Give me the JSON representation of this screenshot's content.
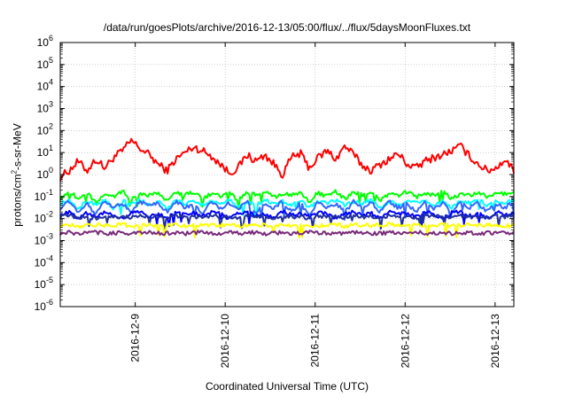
{
  "chart_data": {
    "type": "line",
    "title": "/data/run/goesPlots/archive/2016-12-13/05:00/flux/../flux/5daysMoonFluxes.txt",
    "xlabel": "Coordinated Universal Time (UTC)",
    "ylabel_prefix": "protons/cm",
    "ylabel_sup": "2",
    "ylabel_suffix": "-s-sr-MeV",
    "yscale": "log",
    "ylim": [
      1e-06,
      1000000.0
    ],
    "ytick_base": "10",
    "ytick_exponents": [
      "-6",
      "-5",
      "-4",
      "-3",
      "-2",
      "-1",
      "0",
      "1",
      "2",
      "3",
      "4",
      "5",
      "6"
    ],
    "xlim": [
      "2016-12-08T04:00",
      "2016-12-13T05:00"
    ],
    "xticks": [
      "2016-12-9",
      "2016-12-10",
      "2016-12-11",
      "2016-12-12",
      "2016-12-13"
    ],
    "grid": true,
    "series": [
      {
        "color": "#ff0000",
        "center": 4.0,
        "values": [
          0.8,
          1.5,
          4.0,
          1.5,
          5.0,
          2.0,
          6.0,
          12.0,
          35.0,
          15.0,
          8.0,
          3.0,
          1.5,
          5.0,
          10.0,
          18.0,
          12.0,
          7.0,
          3.0,
          1.2,
          2.0,
          8.0,
          4.0,
          8.0,
          3.0,
          1.0,
          6.0,
          9.0,
          2.0,
          6.0,
          12.0,
          5.0,
          20.0,
          8.0,
          2.5,
          1.5,
          3.0,
          5.0,
          9.0,
          3.0,
          2.0,
          4.0,
          6.0,
          8.0,
          12.0,
          20.0,
          7.0,
          3.0,
          1.5,
          2.0,
          5.0,
          1.5
        ]
      },
      {
        "color": "#00ff00",
        "center": 0.13,
        "values": [
          0.08,
          0.18,
          0.08,
          0.16,
          0.05,
          0.15,
          0.1,
          0.18,
          0.07,
          0.14,
          0.11,
          0.16,
          0.06,
          0.15,
          0.12,
          0.17,
          0.08,
          0.14,
          0.1,
          0.16,
          0.07,
          0.15,
          0.12,
          0.18,
          0.09,
          0.14,
          0.11,
          0.16,
          0.06,
          0.15,
          0.1,
          0.17,
          0.08,
          0.15,
          0.12,
          0.16,
          0.07,
          0.14,
          0.11,
          0.17,
          0.09,
          0.15,
          0.12,
          0.16,
          0.08,
          0.14,
          0.11,
          0.17,
          0.09,
          0.15,
          0.13,
          0.16
        ]
      },
      {
        "color": "#00ffff",
        "center": 0.05,
        "values": [
          0.05,
          0.07,
          0.03,
          0.06,
          0.04,
          0.07,
          0.03,
          0.06,
          0.05,
          0.07,
          0.04,
          0.06,
          0.03,
          0.06,
          0.05,
          0.07,
          0.04,
          0.06,
          0.05,
          0.07,
          0.03,
          0.06,
          0.04,
          0.07,
          0.05,
          0.06,
          0.04,
          0.07,
          0.03,
          0.06,
          0.05,
          0.07,
          0.04,
          0.06,
          0.05,
          0.07,
          0.03,
          0.06,
          0.04,
          0.07,
          0.05,
          0.06,
          0.04,
          0.07,
          0.03,
          0.06,
          0.05,
          0.07,
          0.04,
          0.06,
          0.05,
          0.07
        ]
      },
      {
        "color": "#3366ff",
        "center": 0.04,
        "values": [
          0.03,
          0.06,
          0.02,
          0.05,
          0.015,
          0.06,
          0.03,
          0.05,
          0.02,
          0.06,
          0.035,
          0.05,
          0.02,
          0.06,
          0.03,
          0.05,
          0.015,
          0.06,
          0.03,
          0.05,
          0.025,
          0.06,
          0.02,
          0.05,
          0.03,
          0.06,
          0.02,
          0.05,
          0.015,
          0.06,
          0.03,
          0.05,
          0.02,
          0.06,
          0.035,
          0.05,
          0.02,
          0.06,
          0.03,
          0.05,
          0.02,
          0.06,
          0.03,
          0.05,
          0.02,
          0.06,
          0.03,
          0.05,
          0.02,
          0.05,
          0.03,
          0.06
        ]
      },
      {
        "color": "#0000ff",
        "center": 0.015,
        "values": [
          0.015,
          0.02,
          0.01,
          0.018,
          0.012,
          0.02,
          0.015,
          0.01,
          0.018,
          0.02,
          0.012,
          0.017,
          0.01,
          0.02,
          0.015,
          0.018,
          0.012,
          0.02,
          0.016,
          0.01,
          0.018,
          0.02,
          0.013,
          0.017,
          0.01,
          0.02,
          0.015,
          0.018,
          0.012,
          0.02,
          0.016,
          0.01,
          0.018,
          0.02,
          0.013,
          0.017,
          0.01,
          0.02,
          0.015,
          0.018,
          0.012,
          0.02,
          0.016,
          0.01,
          0.018,
          0.02,
          0.013,
          0.017,
          0.01,
          0.02,
          0.015,
          0.018
        ]
      },
      {
        "color": "#1f2f9f",
        "center": 0.012,
        "values": [
          0.012,
          0.014,
          0.011,
          0.013,
          0.01,
          0.014,
          0.012,
          0.013,
          0.011,
          0.014,
          0.012,
          0.013,
          0.01,
          0.014,
          0.012,
          0.013,
          0.011,
          0.014,
          0.012,
          0.013,
          0.01,
          0.014,
          0.012,
          0.013,
          0.011,
          0.014,
          0.012,
          0.013,
          0.01,
          0.014,
          0.012,
          0.013,
          0.011,
          0.014,
          0.012,
          0.013,
          0.01,
          0.014,
          0.012,
          0.013,
          0.011,
          0.014,
          0.012,
          0.013,
          0.01,
          0.014,
          0.012,
          0.013,
          0.011,
          0.014,
          0.012,
          0.013
        ]
      },
      {
        "color": "#ffff00",
        "center": 0.005,
        "values": [
          0.005,
          0.0055,
          0.0045,
          0.005,
          0.0052,
          0.0048,
          0.005,
          0.0055,
          0.0045,
          0.005,
          0.0052,
          0.0048,
          0.005,
          0.0055,
          0.0045,
          0.005,
          0.0052,
          0.0048,
          0.005,
          0.0055,
          0.0045,
          0.005,
          0.0052,
          0.0048,
          0.005,
          0.0055,
          0.0045,
          0.005,
          0.0052,
          0.0048,
          0.005,
          0.0055,
          0.0045,
          0.005,
          0.0052,
          0.0048,
          0.005,
          0.0055,
          0.0045,
          0.005,
          0.0052,
          0.0048,
          0.005,
          0.0055,
          0.0045,
          0.005,
          0.0052,
          0.0048,
          0.005,
          0.0055,
          0.0045,
          0.005
        ]
      },
      {
        "color": "#7a2a7a",
        "center": 0.0022,
        "values": [
          0.0022,
          0.0023,
          0.0021,
          0.0022,
          0.0024,
          0.0021,
          0.0022,
          0.0023,
          0.0021,
          0.0022,
          0.0024,
          0.0021,
          0.0022,
          0.0023,
          0.0021,
          0.0022,
          0.0024,
          0.0021,
          0.0022,
          0.0023,
          0.0021,
          0.0022,
          0.0024,
          0.0021,
          0.0022,
          0.0023,
          0.0021,
          0.0022,
          0.0024,
          0.0021,
          0.0022,
          0.0023,
          0.0021,
          0.0022,
          0.0024,
          0.0021,
          0.0022,
          0.0023,
          0.0021,
          0.0022,
          0.0024,
          0.0021,
          0.0022,
          0.0023,
          0.0021,
          0.0022,
          0.0024,
          0.0021,
          0.0022,
          0.0023,
          0.0021,
          0.0022
        ]
      }
    ]
  }
}
